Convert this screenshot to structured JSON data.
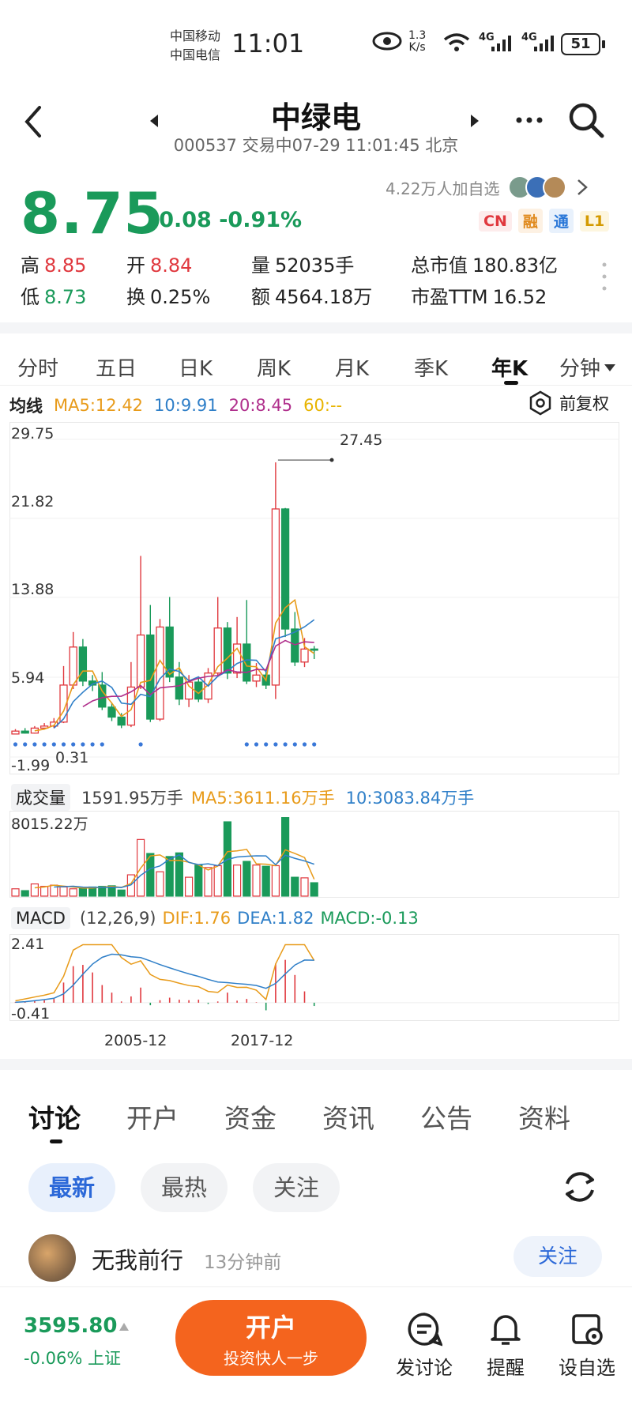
{
  "status_bar": {
    "carrier1": "中国移动",
    "carrier2": "中国电信",
    "time": "11:01",
    "net_speed_value": "1.3",
    "net_speed_unit": "K/s",
    "net1": "4G",
    "net2": "4G",
    "battery": "51"
  },
  "header": {
    "title": "中绿电",
    "subtitle": "000537 交易中07-29 11:01:45 北京"
  },
  "quote": {
    "price": "8.75",
    "change": "-0.08 -0.91%",
    "followers": "4.22万人加自选",
    "tags": [
      "CN",
      "融",
      "通",
      "L1"
    ],
    "high_label": "高",
    "high": "8.85",
    "open_label": "开",
    "open": "8.84",
    "volume_label": "量",
    "volume": "52035手",
    "mcap_label": "总市值",
    "mcap": "180.83亿",
    "low_label": "低",
    "low": "8.73",
    "turnover_label": "换",
    "turnover": "0.25%",
    "amount_label": "额",
    "amount": "4564.18万",
    "pe_label": "市盈TTM",
    "pe": "16.52"
  },
  "period_tabs": [
    "分时",
    "五日",
    "日K",
    "周K",
    "月K",
    "季K",
    "年K",
    "分钟"
  ],
  "active_period": "年K",
  "ma_legend": {
    "label": "均线",
    "ma5": "MA5:12.42",
    "ma10": "10:9.91",
    "ma20": "20:8.45",
    "ma60": "60:--",
    "adjust": "前复权"
  },
  "volume_legend": {
    "label": "成交量",
    "vol": "1591.95万手",
    "ma5": "MA5:3611.16万手",
    "ma10": "10:3083.84万手",
    "max": "8015.22万"
  },
  "macd_legend": {
    "label": "MACD",
    "params": "(12,26,9)",
    "dif": "DIF:1.76",
    "dea": "DEA:1.82",
    "macd": "MACD:-0.13",
    "top": "2.41",
    "bottom": "-0.41"
  },
  "x_axis": [
    "2005-12",
    "2017-12"
  ],
  "chart_data": {
    "type": "candlestick",
    "y_ticks": [
      "29.75",
      "21.82",
      "13.88",
      "5.94",
      "-1.99"
    ],
    "ylim": [
      -1.99,
      29.75
    ],
    "max_label": "27.45",
    "min_label": "0.31",
    "candles": [
      {
        "o": 0.31,
        "c": 0.6,
        "h": 0.8,
        "l": 0.31
      },
      {
        "o": 0.6,
        "c": 0.4,
        "h": 0.9,
        "l": 0.35
      },
      {
        "o": 0.4,
        "c": 0.9,
        "h": 1.1,
        "l": 0.35
      },
      {
        "o": 0.9,
        "c": 1.1,
        "h": 1.4,
        "l": 0.8
      },
      {
        "o": 1.1,
        "c": 1.5,
        "h": 1.9,
        "l": 0.9
      },
      {
        "o": 1.5,
        "c": 5.2,
        "h": 7.1,
        "l": 1.4
      },
      {
        "o": 5.2,
        "c": 9.0,
        "h": 10.5,
        "l": 4.8
      },
      {
        "o": 9.0,
        "c": 5.6,
        "h": 9.8,
        "l": 5.1
      },
      {
        "o": 5.6,
        "c": 5.2,
        "h": 6.2,
        "l": 4.6
      },
      {
        "o": 5.2,
        "c": 3.0,
        "h": 6.5,
        "l": 2.7
      },
      {
        "o": 3.0,
        "c": 2.0,
        "h": 3.4,
        "l": 1.6
      },
      {
        "o": 2.0,
        "c": 1.2,
        "h": 2.4,
        "l": 0.9
      },
      {
        "o": 1.2,
        "c": 5.0,
        "h": 7.5,
        "l": 1.0
      },
      {
        "o": 5.0,
        "c": 10.2,
        "h": 18.1,
        "l": 4.8
      },
      {
        "o": 10.2,
        "c": 1.8,
        "h": 13.2,
        "l": 1.5
      },
      {
        "o": 1.8,
        "c": 11.0,
        "h": 11.8,
        "l": 1.6
      },
      {
        "o": 11.0,
        "c": 6.0,
        "h": 14.0,
        "l": 5.5
      },
      {
        "o": 6.0,
        "c": 3.8,
        "h": 7.5,
        "l": 3.2
      },
      {
        "o": 3.8,
        "c": 5.5,
        "h": 6.2,
        "l": 3.0
      },
      {
        "o": 5.5,
        "c": 3.8,
        "h": 6.0,
        "l": 3.5
      },
      {
        "o": 3.8,
        "c": 6.4,
        "h": 6.9,
        "l": 3.4
      },
      {
        "o": 6.4,
        "c": 10.9,
        "h": 14.0,
        "l": 6.0
      },
      {
        "o": 10.9,
        "c": 6.4,
        "h": 11.5,
        "l": 5.8
      },
      {
        "o": 6.4,
        "c": 9.3,
        "h": 12.0,
        "l": 5.9
      },
      {
        "o": 9.3,
        "c": 5.6,
        "h": 13.7,
        "l": 5.3
      },
      {
        "o": 5.6,
        "c": 6.2,
        "h": 7.4,
        "l": 5.0
      },
      {
        "o": 6.2,
        "c": 5.2,
        "h": 6.6,
        "l": 4.8
      },
      {
        "o": 5.2,
        "c": 22.8,
        "h": 27.45,
        "l": 3.8
      },
      {
        "o": 22.8,
        "c": 10.8,
        "h": 22.9,
        "l": 10.0
      },
      {
        "o": 10.8,
        "c": 7.5,
        "h": 12.5,
        "l": 7.1
      },
      {
        "o": 7.5,
        "c": 8.8,
        "h": 9.9,
        "l": 7.0
      },
      {
        "o": 8.8,
        "c": 8.75,
        "h": 9.1,
        "l": 7.8
      }
    ],
    "volume": [
      1.2,
      0.9,
      2.0,
      1.6,
      1.8,
      1.5,
      1.2,
      1.3,
      1.5,
      1.6,
      1.7,
      1.0,
      3.5,
      9.3,
      7.0,
      4.0,
      6.5,
      7.1,
      3.1,
      5.1,
      4.7,
      5.0,
      12.2,
      5.1,
      5.7,
      5.1,
      4.9,
      5.0,
      12.9,
      3.1,
      3.0,
      2.2
    ],
    "volume_max": 8015.22,
    "macd_hist": [
      0.03,
      0.05,
      0.08,
      0.1,
      0.15,
      0.8,
      1.45,
      1.5,
      1.2,
      0.7,
      0.4,
      0.05,
      0.25,
      0.6,
      -0.1,
      0.1,
      0.2,
      0.12,
      0.1,
      0.12,
      -0.05,
      0.05,
      0.4,
      0.08,
      0.15,
      0.02,
      -0.3,
      1.55,
      1.7,
      1.1,
      0.45,
      -0.13
    ],
    "macd_ylim": [
      -0.41,
      2.41
    ]
  },
  "discussion": {
    "tabs": [
      "讨论",
      "开户",
      "资金",
      "资讯",
      "公告",
      "资料"
    ],
    "filters": [
      "最新",
      "最热",
      "关注"
    ],
    "post_user": "无我前行",
    "post_time": "13分钟前",
    "follow_btn": "关注"
  },
  "bottom_bar": {
    "index_value": "3595.80",
    "index_change": "-0.06% 上证",
    "open_btn": "开户",
    "open_sub": "投资快人一步",
    "post_label": "发讨论",
    "remind_label": "提醒",
    "watch_label": "设自选"
  }
}
